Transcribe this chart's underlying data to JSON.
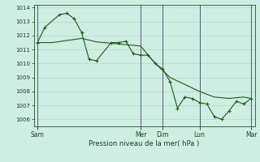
{
  "background_color": "#ceeee4",
  "grid_color": "#a8cfc0",
  "line_color": "#1a5c1a",
  "marker_color": "#1a5c1a",
  "xlabel": "Pression niveau de la mer( hPa )",
  "ylim": [
    1005.5,
    1014.2
  ],
  "yticks": [
    1006,
    1007,
    1008,
    1009,
    1010,
    1011,
    1012,
    1013,
    1014
  ],
  "xlim": [
    -0.5,
    29.5
  ],
  "day_positions": [
    0,
    14,
    17,
    22,
    29
  ],
  "day_labels": [
    "Sam",
    "Mer",
    "Dim",
    "Lun",
    "Mar"
  ],
  "vline_color": "#5a5a7a",
  "line1_x": [
    0,
    1,
    3,
    4,
    5,
    6,
    7,
    8,
    10,
    11,
    12,
    13,
    14,
    15,
    16,
    17,
    18,
    19,
    20,
    21,
    22,
    23,
    24,
    25,
    26,
    27,
    28,
    29
  ],
  "line1_y": [
    1011.5,
    1012.6,
    1013.5,
    1013.6,
    1013.2,
    1012.2,
    1010.3,
    1010.2,
    1011.5,
    1011.5,
    1011.6,
    1010.7,
    1010.6,
    1010.6,
    1010.0,
    1009.6,
    1008.7,
    1006.8,
    1007.6,
    1007.5,
    1007.2,
    1007.1,
    1006.2,
    1006.0,
    1006.6,
    1007.3,
    1007.1,
    1007.5
  ],
  "line2_x": [
    0,
    2,
    4,
    6,
    8,
    10,
    12,
    14,
    16,
    18,
    20,
    22,
    24,
    26,
    28,
    29
  ],
  "line2_y": [
    1011.5,
    1011.5,
    1011.65,
    1011.8,
    1011.55,
    1011.45,
    1011.35,
    1011.25,
    1010.0,
    1009.0,
    1008.5,
    1008.0,
    1007.6,
    1007.5,
    1007.6,
    1007.5
  ]
}
